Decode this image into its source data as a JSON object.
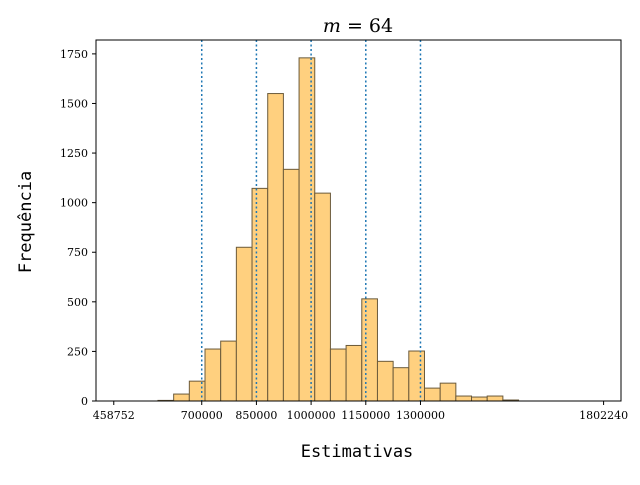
{
  "chart_data": {
    "type": "bar",
    "title": "m = 64",
    "title_parts": {
      "var": "m",
      "eq": " = ",
      "num": "64"
    },
    "xlabel": "Estimativas",
    "ylabel": "Frequência",
    "xlim": [
      410000,
      1850000
    ],
    "ylim": [
      0,
      1820
    ],
    "x_ticks": [
      458752,
      700000,
      850000,
      1000000,
      1150000,
      1300000,
      1802240
    ],
    "x_tick_labels": [
      "458752",
      "700000",
      "850000",
      "1000000",
      "1150000",
      "1300000",
      "1802240"
    ],
    "y_ticks": [
      0,
      250,
      500,
      750,
      1000,
      1250,
      1500,
      1750
    ],
    "y_tick_labels": [
      "0",
      "250",
      "500",
      "750",
      "1000",
      "1250",
      "1500",
      "1750"
    ],
    "bins": [
      {
        "start": 580000,
        "end": 623000,
        "value": 3
      },
      {
        "start": 623000,
        "end": 666000,
        "value": 35
      },
      {
        "start": 666000,
        "end": 709000,
        "value": 100
      },
      {
        "start": 709000,
        "end": 752000,
        "value": 262
      },
      {
        "start": 752000,
        "end": 795000,
        "value": 302
      },
      {
        "start": 795000,
        "end": 838000,
        "value": 775
      },
      {
        "start": 838000,
        "end": 881000,
        "value": 1072
      },
      {
        "start": 881000,
        "end": 924000,
        "value": 1550
      },
      {
        "start": 924000,
        "end": 967000,
        "value": 1168
      },
      {
        "start": 967000,
        "end": 1010000,
        "value": 1730
      },
      {
        "start": 1010000,
        "end": 1053000,
        "value": 1048
      },
      {
        "start": 1053000,
        "end": 1096000,
        "value": 262
      },
      {
        "start": 1096000,
        "end": 1139000,
        "value": 280
      },
      {
        "start": 1139000,
        "end": 1182000,
        "value": 515
      },
      {
        "start": 1182000,
        "end": 1225000,
        "value": 200
      },
      {
        "start": 1225000,
        "end": 1268000,
        "value": 168
      },
      {
        "start": 1268000,
        "end": 1311000,
        "value": 252
      },
      {
        "start": 1311000,
        "end": 1354000,
        "value": 65
      },
      {
        "start": 1354000,
        "end": 1397000,
        "value": 90
      },
      {
        "start": 1397000,
        "end": 1440000,
        "value": 25
      },
      {
        "start": 1440000,
        "end": 1483000,
        "value": 20
      },
      {
        "start": 1483000,
        "end": 1526000,
        "value": 25
      },
      {
        "start": 1526000,
        "end": 1569000,
        "value": 5
      }
    ],
    "vlines": [
      700000,
      850000,
      1000000,
      1150000,
      1300000
    ],
    "colors": {
      "bar_fill": "#ffd07f",
      "bar_edge": "#6b5a3a",
      "vline": "#1f77b4",
      "axis": "#000000"
    },
    "grid": false
  }
}
